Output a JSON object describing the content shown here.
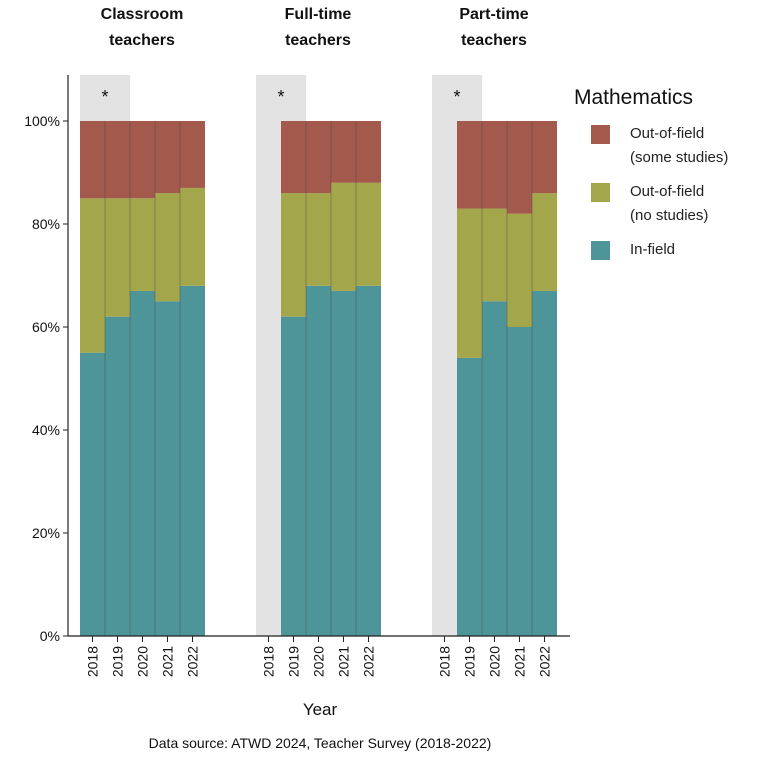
{
  "chart_data": {
    "type": "bar",
    "stacked": true,
    "xlabel": "Year",
    "ylabel": "",
    "ylim": [
      0,
      100
    ],
    "yticks": [
      "0%",
      "20%",
      "40%",
      "60%",
      "80%",
      "100%"
    ],
    "legend_title": "Mathematics",
    "legend": [
      {
        "name": "Out-of-field\n(some studies)",
        "color": "#a35a4d"
      },
      {
        "name": "Out-of-field\n(no studies)",
        "color": "#a3a64a"
      },
      {
        "name": "In-field",
        "color": "#4d9599"
      }
    ],
    "legend_placement": "right",
    "source": "Data source: ATWD 2024, Teacher Survey (2018-2022)",
    "panels": [
      {
        "title": "Classroom\nteachers",
        "categories": [
          "2018",
          "2019",
          "2020",
          "2021",
          "2022"
        ],
        "marker": "*",
        "highlight_category": "2018",
        "series": [
          {
            "name": "In-field",
            "values": [
              55,
              62,
              67,
              65,
              68
            ]
          },
          {
            "name": "Out-of-field (no studies)",
            "values": [
              30,
              23,
              18,
              21,
              19
            ]
          },
          {
            "name": "Out-of-field (some studies)",
            "values": [
              15,
              15,
              15,
              14,
              13
            ]
          }
        ]
      },
      {
        "title": "Full-time\nteachers",
        "categories": [
          "2018",
          "2019",
          "2020",
          "2021",
          "2022"
        ],
        "marker": "*",
        "highlight_category": "2018",
        "series": [
          {
            "name": "In-field",
            "values": [
              null,
              62,
              68,
              67,
              68
            ]
          },
          {
            "name": "Out-of-field (no studies)",
            "values": [
              null,
              24,
              18,
              21,
              20
            ]
          },
          {
            "name": "Out-of-field (some studies)",
            "values": [
              null,
              14,
              14,
              12,
              12
            ]
          }
        ]
      },
      {
        "title": "Part-time\nteachers",
        "categories": [
          "2018",
          "2019",
          "2020",
          "2021",
          "2022"
        ],
        "marker": "*",
        "highlight_category": "2018",
        "series": [
          {
            "name": "In-field",
            "values": [
              null,
              54,
              65,
              60,
              67
            ]
          },
          {
            "name": "Out-of-field (no studies)",
            "values": [
              null,
              29,
              18,
              22,
              19
            ]
          },
          {
            "name": "Out-of-field (some studies)",
            "values": [
              null,
              17,
              17,
              18,
              14
            ]
          }
        ]
      }
    ]
  }
}
